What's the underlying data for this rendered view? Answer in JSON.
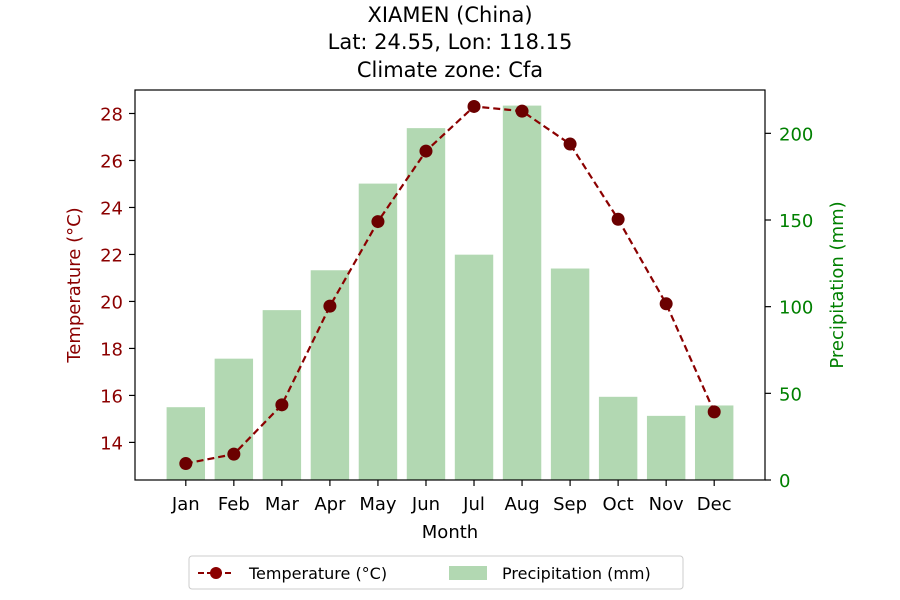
{
  "chart_data": {
    "type": "bar+line",
    "title_lines": [
      "XIAMEN (China)",
      "Lat: 24.55, Lon: 118.15",
      "Climate zone: Cfa"
    ],
    "xlabel": "Month",
    "ylabel_left": "Temperature (°C)",
    "ylabel_right": "Precipitation (mm)",
    "categories": [
      "Jan",
      "Feb",
      "Mar",
      "Apr",
      "May",
      "Jun",
      "Jul",
      "Aug",
      "Sep",
      "Oct",
      "Nov",
      "Dec"
    ],
    "temperature": {
      "name": "Temperature (°C)",
      "values": [
        13.1,
        13.5,
        15.6,
        19.8,
        23.4,
        26.4,
        28.3,
        28.1,
        26.7,
        23.5,
        19.9,
        15.3
      ],
      "color": "#8b0000",
      "ylim": [
        12.4,
        29.0
      ],
      "ticks": [
        14,
        16,
        18,
        20,
        22,
        24,
        26,
        28
      ]
    },
    "precipitation": {
      "name": "Precipitation (mm)",
      "values": [
        42,
        70,
        98,
        121,
        171,
        203,
        130,
        216,
        122,
        48,
        37,
        43
      ],
      "color": "#b2d8b2",
      "ylim": [
        0,
        225
      ],
      "ticks": [
        0,
        50,
        100,
        150,
        200
      ]
    },
    "left_axis_color": "#8b0000",
    "right_axis_color": "#008000",
    "legend_placement": "bottom-center"
  }
}
